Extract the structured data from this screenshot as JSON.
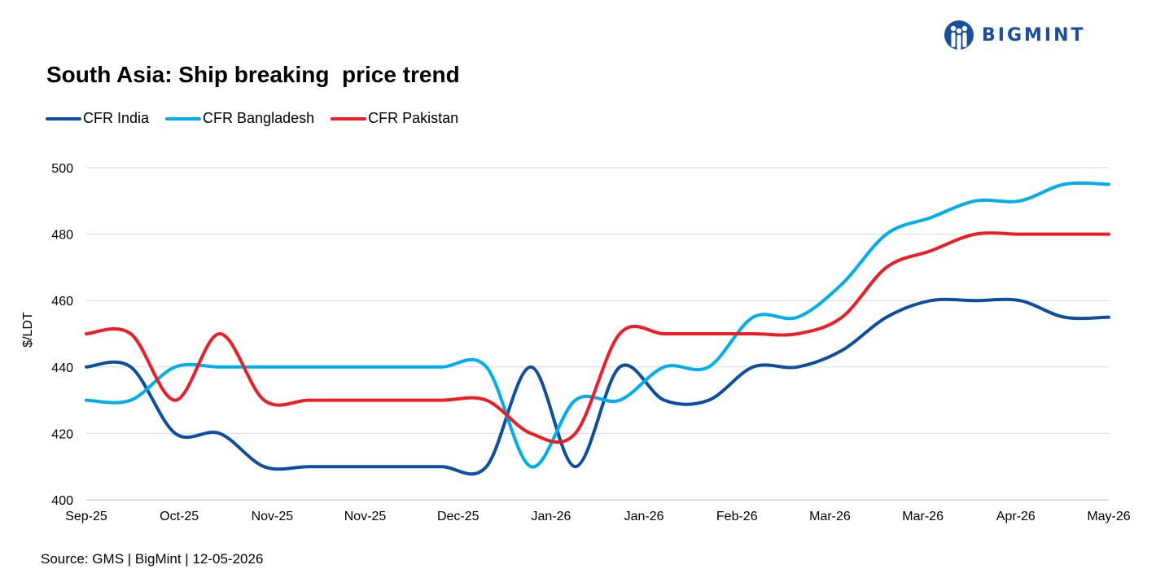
{
  "logo": {
    "text": "BIGMINT"
  },
  "chart_data": {
    "type": "line",
    "title": "South Asia: Ship breaking  price trend",
    "ylabel": "$/LDT",
    "xlabel": "",
    "ylim": [
      400,
      500
    ],
    "yticks": [
      400,
      420,
      440,
      460,
      480,
      500
    ],
    "grid": true,
    "legend_position": "top-left",
    "x_labels": [
      "Sep-25",
      "Oct-25",
      "Nov-25",
      "Nov-25",
      "Dec-25",
      "Jan-26",
      "Jan-26",
      "Feb-26",
      "Mar-26",
      "Mar-26",
      "Apr-26",
      "May-26"
    ],
    "n_points": 24,
    "series": [
      {
        "name": "CFR India",
        "color": "#0b4ea2",
        "values": [
          440,
          440,
          420,
          420,
          410,
          410,
          410,
          410,
          410,
          410,
          440,
          410,
          440,
          430,
          430,
          440,
          440,
          445,
          455,
          460,
          460,
          460,
          455,
          455
        ]
      },
      {
        "name": "CFR Bangladesh",
        "color": "#00aeef",
        "values": [
          430,
          430,
          440,
          440,
          440,
          440,
          440,
          440,
          440,
          440,
          410,
          430,
          430,
          440,
          440,
          455,
          455,
          465,
          480,
          485,
          490,
          490,
          495,
          495
        ]
      },
      {
        "name": "CFR Pakistan",
        "color": "#ee1c25",
        "values": [
          450,
          450,
          430,
          450,
          430,
          430,
          430,
          430,
          430,
          430,
          420,
          420,
          450,
          450,
          450,
          450,
          450,
          455,
          470,
          475,
          480,
          480,
          480,
          480
        ]
      }
    ]
  },
  "source": "Source: GMS | BigMint  | 12-05-2026"
}
